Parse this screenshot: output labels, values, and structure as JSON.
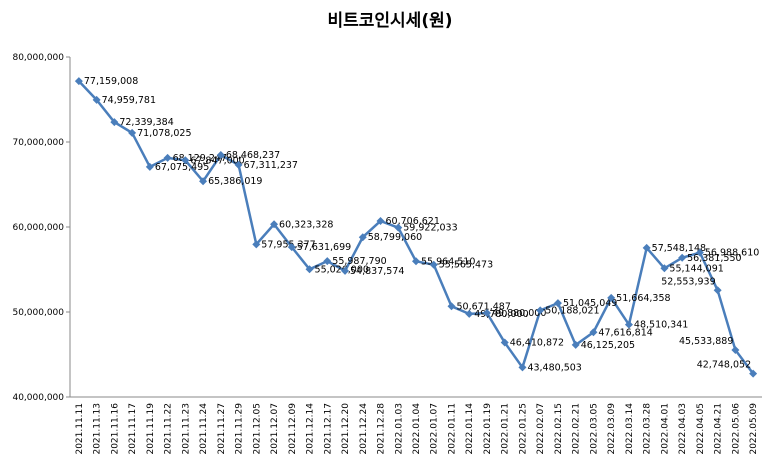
{
  "chart_data": {
    "type": "line",
    "title": "비트코인시세(원)",
    "categories": [
      "2021.11.11",
      "2021.11.13",
      "2021.11.16",
      "2021.11.17",
      "2021.11.19",
      "2021.11.22",
      "2021.11.23",
      "2021.11.24",
      "2021.11.27",
      "2021.11.29",
      "2021.12.05",
      "2021.12.07",
      "2021.12.09",
      "2021.12.14",
      "2021.12.17",
      "2021.12.20",
      "2021.12.24",
      "2021.12.28",
      "2022.01.03",
      "2022.01.04",
      "2022.01.07",
      "2022.01.11",
      "2022.01.14",
      "2022.01.19",
      "2022.01.21",
      "2022.01.25",
      "2022.02.07",
      "2022.02.15",
      "2022.02.21",
      "2022.03.05",
      "2022.03.09",
      "2022.03.14",
      "2022.03.28",
      "2022.04.01",
      "2022.04.03",
      "2022.04.05",
      "2022.04.21",
      "2022.05.06",
      "2022.05.09"
    ],
    "series": [
      {
        "name": "비트코인시세",
        "color": "#4a7ebb",
        "values": [
          77159008,
          74959781,
          72339384,
          71078025,
          67075495,
          68129247,
          67847000,
          65386019,
          68468237,
          67311237,
          57955377,
          60323328,
          57631699,
          55026000,
          55987790,
          54837574,
          58799060,
          60706621,
          59922033,
          55964510,
          55565473,
          50671487,
          49780000,
          49880000,
          46410872,
          43480503,
          50188021,
          51045049,
          46125205,
          47616814,
          51664358,
          48510341,
          57548148,
          55144091,
          56381550,
          56988610,
          52553939,
          45533889,
          42748052
        ],
        "value_labels": [
          "77,159,008",
          "74,959,781",
          "72,339,384",
          "71,078,025",
          "67,075,495",
          "68,129,247",
          "67,847,000",
          "65,386,019",
          "68,468,237",
          "67,311,237",
          "57,955,377",
          "60,323,328",
          "57,631,699",
          "55,026,000",
          "55,987,790",
          "54,837,574",
          "58,799,060",
          "60,706,621",
          "59,922,033",
          "55,964,510",
          "55,565,473",
          "50,671,487",
          "49,780,000",
          "49,880,000",
          "46,410,872",
          "43,480,503",
          "50,188,021",
          "51,045,049",
          "46,125,205",
          "47,616,814",
          "51,664,358",
          "48,510,341",
          "57,548,148",
          "55,144,091",
          "56,381,550",
          "56,988,610",
          "52,553,939",
          "45,533,889",
          "42,748,052"
        ]
      }
    ],
    "ylim": [
      40000000,
      80000000
    ],
    "yticks": [
      {
        "value": 40000000,
        "label": "40,000,000"
      },
      {
        "value": 50000000,
        "label": "50,000,000"
      },
      {
        "value": 60000000,
        "label": "60,000,000"
      },
      {
        "value": 70000000,
        "label": "70,000,000"
      },
      {
        "value": 80000000,
        "label": "80,000,000"
      }
    ],
    "grid": false
  }
}
